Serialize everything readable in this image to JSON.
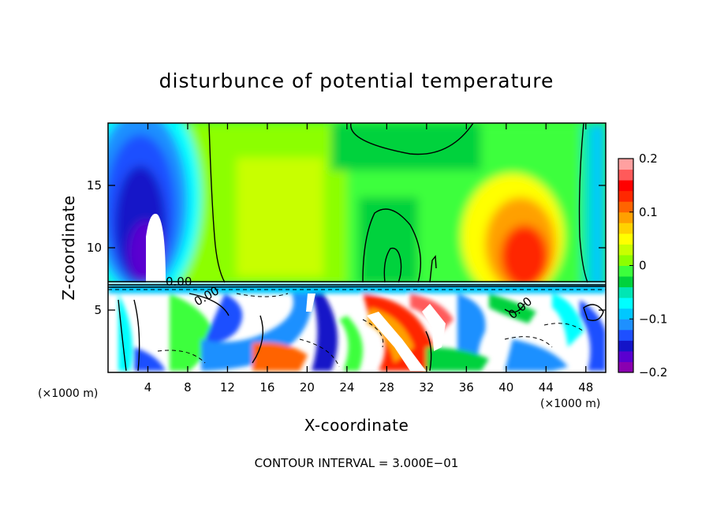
{
  "chart_data": {
    "type": "heatmap",
    "title": "disturbunce of potential temperature",
    "xlabel": "X-coordinate",
    "ylabel": "Z-coordinate",
    "x_unit": "(×1000 m)",
    "x_unit_right": "(×1000 m)",
    "xlim": [
      0,
      50
    ],
    "ylim": [
      0,
      20
    ],
    "xticks": [
      4,
      8,
      12,
      16,
      20,
      24,
      28,
      32,
      36,
      40,
      44,
      48
    ],
    "xtick_labels": [
      "4",
      "8",
      "12",
      "16",
      "20",
      "24",
      "28",
      "32",
      "36",
      "40",
      "44",
      "48"
    ],
    "yticks": [
      5,
      10,
      15
    ],
    "ytick_labels": [
      "5",
      "10",
      "15"
    ],
    "colorbar": {
      "min": -0.2,
      "max": 0.2,
      "ticks": [
        0.2,
        0.1,
        0,
        -0.1,
        -0.2
      ],
      "tick_labels": [
        "0.2",
        "0.1",
        "0",
        "−0.1",
        "−0.2"
      ],
      "colors": [
        "#8a00b0",
        "#5a00d0",
        "#1414c8",
        "#1e50ff",
        "#1e90ff",
        "#00c8ff",
        "#00ffff",
        "#00e6b4",
        "#00d23c",
        "#3cff3c",
        "#8cff00",
        "#c8ff00",
        "#ffff00",
        "#ffd200",
        "#ffa000",
        "#ff6400",
        "#ff2800",
        "#ff0000",
        "#ff5a5a",
        "#ffa0a0"
      ]
    },
    "contour_labels": [
      "0.00",
      "0.00",
      "0.00"
    ],
    "footer": "CONTOUR INTERVAL = 3.000E−01"
  }
}
